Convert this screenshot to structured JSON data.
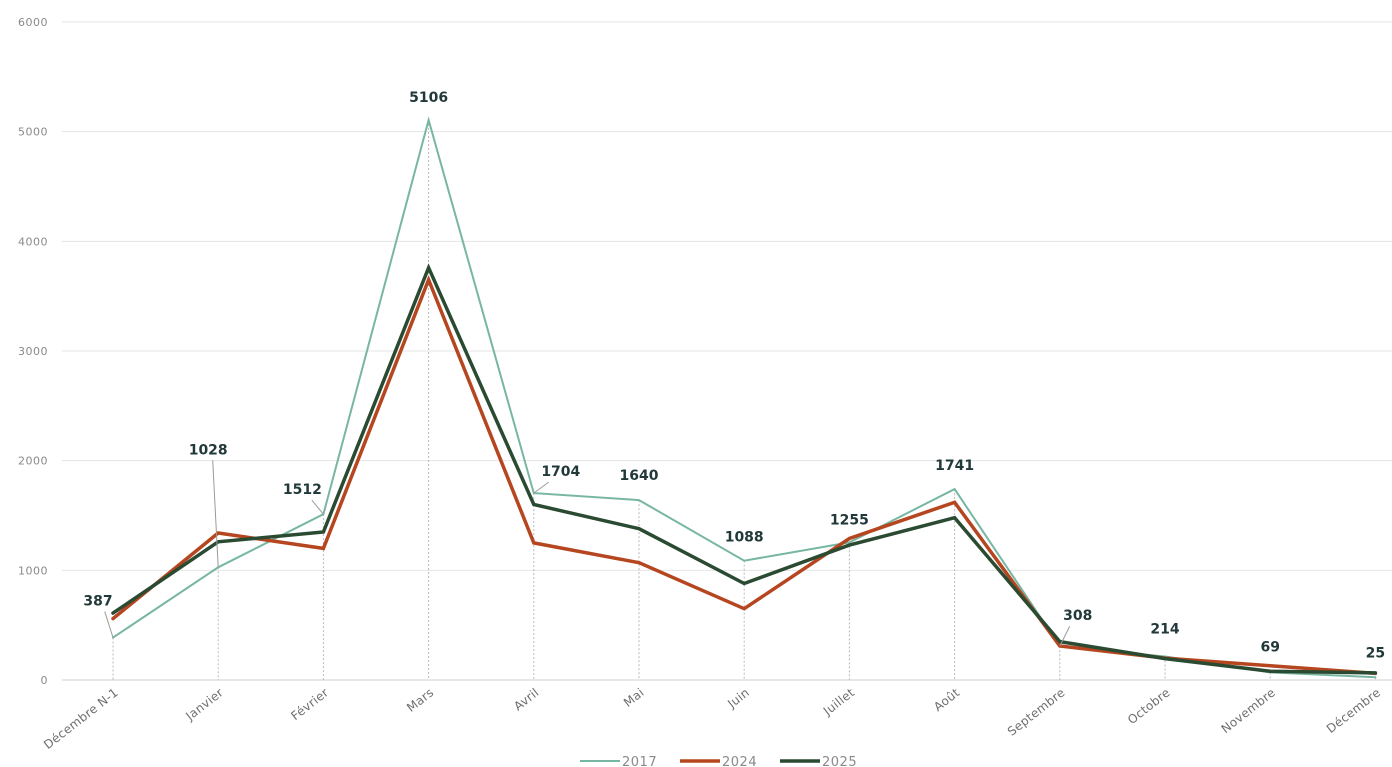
{
  "chart_data": {
    "type": "line",
    "title": "",
    "xlabel": "",
    "ylabel": "",
    "categories": [
      "Décembre N-1",
      "Janvier",
      "Février",
      "Mars",
      "Avril",
      "Mai",
      "Juin",
      "Juillet",
      "Août",
      "Septembre",
      "Octobre",
      "Novembre",
      "Décembre"
    ],
    "ylim": [
      0,
      6000
    ],
    "yticks": [
      0,
      1000,
      2000,
      3000,
      4000,
      5000,
      6000
    ],
    "grid": "horizontal",
    "legend_position": "bottom",
    "series": [
      {
        "name": "2017",
        "color": "#78b6a4",
        "values": [
          387,
          1028,
          1512,
          5106,
          1704,
          1640,
          1088,
          1255,
          1741,
          308,
          214,
          69,
          25
        ]
      },
      {
        "name": "2024",
        "color": "#b5461f",
        "values": [
          560,
          1340,
          1200,
          3650,
          1250,
          1070,
          650,
          1290,
          1620,
          310,
          200,
          130,
          60
        ]
      },
      {
        "name": "2025",
        "color": "#2b4a32",
        "values": [
          610,
          1260,
          1350,
          3760,
          1600,
          1380,
          880,
          1230,
          1480,
          350,
          195,
          80,
          65
        ]
      }
    ],
    "data_labels": {
      "series": "2017",
      "values": [
        "387",
        "1028",
        "1512",
        "5106",
        "1704",
        "1640",
        "1088",
        "1255",
        "1741",
        "308",
        "214",
        "69",
        "25"
      ]
    }
  }
}
